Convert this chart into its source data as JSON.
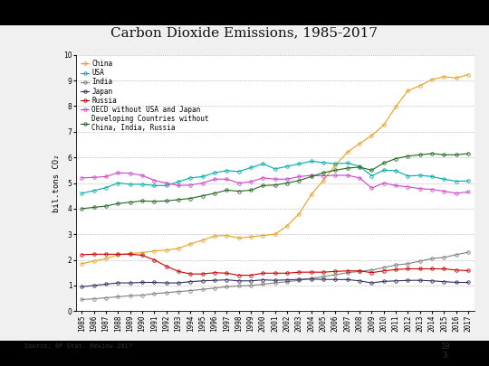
{
  "title": "Carbon Dioxide Emissions, 1985-2017",
  "ylabel": "bil.tons CO₂",
  "source": "Source: BP Stat. Review 2017",
  "page_number": "19\n3",
  "years": [
    1985,
    1986,
    1987,
    1988,
    1989,
    1990,
    1991,
    1992,
    1993,
    1994,
    1995,
    1996,
    1997,
    1998,
    1999,
    2000,
    2001,
    2002,
    2003,
    2004,
    2005,
    2006,
    2007,
    2008,
    2009,
    2010,
    2011,
    2012,
    2013,
    2014,
    2015,
    2016,
    2017
  ],
  "series": {
    "China": {
      "color": "#E8A020",
      "marker": "o",
      "values": [
        1.85,
        1.95,
        2.05,
        2.2,
        2.25,
        2.28,
        2.35,
        2.38,
        2.45,
        2.62,
        2.77,
        2.93,
        2.95,
        2.85,
        2.9,
        2.95,
        3.0,
        3.33,
        3.8,
        4.55,
        5.1,
        5.7,
        6.2,
        6.54,
        6.85,
        7.26,
        7.98,
        8.6,
        8.8,
        9.04,
        9.15,
        9.1,
        9.23
      ]
    },
    "USA": {
      "color": "#00AAAA",
      "marker": "o",
      "values": [
        4.6,
        4.7,
        4.82,
        5.0,
        4.95,
        4.95,
        4.9,
        4.9,
        5.05,
        5.2,
        5.25,
        5.4,
        5.48,
        5.45,
        5.6,
        5.75,
        5.55,
        5.65,
        5.75,
        5.85,
        5.8,
        5.75,
        5.78,
        5.65,
        5.28,
        5.5,
        5.48,
        5.27,
        5.3,
        5.25,
        5.15,
        5.07,
        5.08
      ]
    },
    "India": {
      "color": "#808080",
      "marker": "o",
      "values": [
        0.45,
        0.48,
        0.52,
        0.56,
        0.6,
        0.62,
        0.68,
        0.72,
        0.76,
        0.8,
        0.85,
        0.9,
        0.95,
        0.98,
        1.0,
        1.05,
        1.1,
        1.15,
        1.2,
        1.28,
        1.35,
        1.42,
        1.5,
        1.55,
        1.6,
        1.7,
        1.8,
        1.85,
        1.95,
        2.05,
        2.1,
        2.2,
        2.3
      ]
    },
    "Japan": {
      "color": "#303060",
      "marker": "o",
      "values": [
        0.95,
        1.0,
        1.05,
        1.1,
        1.1,
        1.12,
        1.12,
        1.1,
        1.1,
        1.15,
        1.18,
        1.2,
        1.22,
        1.18,
        1.18,
        1.22,
        1.2,
        1.22,
        1.24,
        1.25,
        1.24,
        1.23,
        1.23,
        1.18,
        1.1,
        1.16,
        1.18,
        1.2,
        1.2,
        1.18,
        1.15,
        1.12,
        1.12
      ]
    },
    "Russia": {
      "color": "#CC0000",
      "marker": "o",
      "values": [
        2.2,
        2.22,
        2.22,
        2.22,
        2.22,
        2.18,
        2.0,
        1.75,
        1.55,
        1.45,
        1.45,
        1.5,
        1.48,
        1.4,
        1.4,
        1.48,
        1.48,
        1.48,
        1.52,
        1.52,
        1.52,
        1.55,
        1.57,
        1.57,
        1.5,
        1.57,
        1.62,
        1.65,
        1.65,
        1.65,
        1.65,
        1.6,
        1.58
      ]
    },
    "OECD without USA and Japan": {
      "color": "#CC44CC",
      "marker": "o",
      "values": [
        5.2,
        5.22,
        5.25,
        5.4,
        5.38,
        5.3,
        5.1,
        5.0,
        4.9,
        4.92,
        5.0,
        5.15,
        5.15,
        5.0,
        5.05,
        5.2,
        5.15,
        5.15,
        5.25,
        5.3,
        5.28,
        5.3,
        5.3,
        5.2,
        4.8,
        5.0,
        4.9,
        4.85,
        4.78,
        4.75,
        4.68,
        4.6,
        4.65
      ]
    },
    "Developing Countries without\nChina, India, Russia": {
      "color": "#226622",
      "marker": "o",
      "values": [
        4.0,
        4.05,
        4.1,
        4.2,
        4.25,
        4.3,
        4.28,
        4.3,
        4.35,
        4.4,
        4.5,
        4.6,
        4.72,
        4.68,
        4.72,
        4.9,
        4.92,
        5.0,
        5.1,
        5.25,
        5.4,
        5.5,
        5.58,
        5.62,
        5.5,
        5.78,
        5.95,
        6.05,
        6.1,
        6.15,
        6.1,
        6.1,
        6.15
      ]
    }
  },
  "ylim": [
    0,
    10
  ],
  "yticks": [
    0,
    1,
    2,
    3,
    4,
    5,
    6,
    7,
    8,
    9,
    10
  ],
  "slide_bg": "#000000",
  "content_bg": "#F0F0F0",
  "chart_bg": "#FFFFFF",
  "grid_color": "#888888",
  "title_fontsize": 11,
  "tick_fontsize": 5.5,
  "legend_fontsize": 5.5,
  "ylabel_fontsize": 6.5,
  "source_fontsize": 5,
  "page_fontsize": 6
}
